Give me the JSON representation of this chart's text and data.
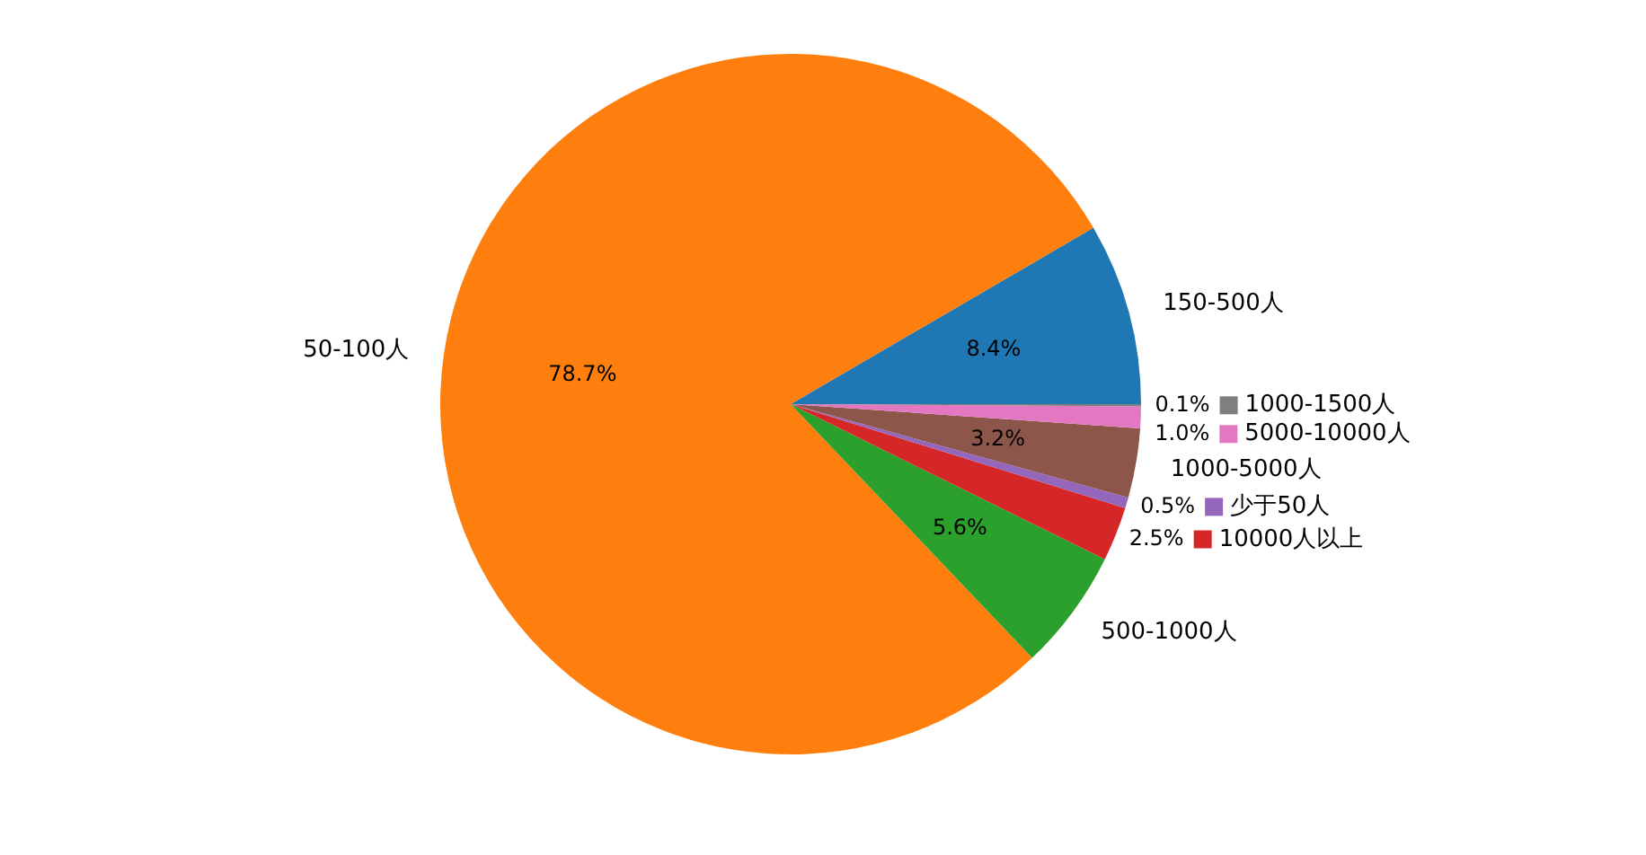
{
  "chart_data": {
    "type": "pie",
    "categories": [
      "150-500人",
      "50-100人",
      "500-1000人",
      "10000人以上",
      "少于50人",
      "1000-5000人",
      "5000-10000人",
      "1000-1500人"
    ],
    "values": [
      8.4,
      78.7,
      5.6,
      2.5,
      0.5,
      3.2,
      1.0,
      0.1
    ],
    "value_labels": [
      "8.4%",
      "78.7%",
      "5.6%",
      "2.5%",
      "0.5%",
      "3.2%",
      "1.0%",
      "0.1%"
    ],
    "legend": "right",
    "colors": [
      "#1f77b4",
      "#ff7f0e",
      "#2ca02c",
      "#d62728",
      "#9467bd",
      "#8c564b",
      "#e377c2",
      "#7f7f7f"
    ]
  }
}
